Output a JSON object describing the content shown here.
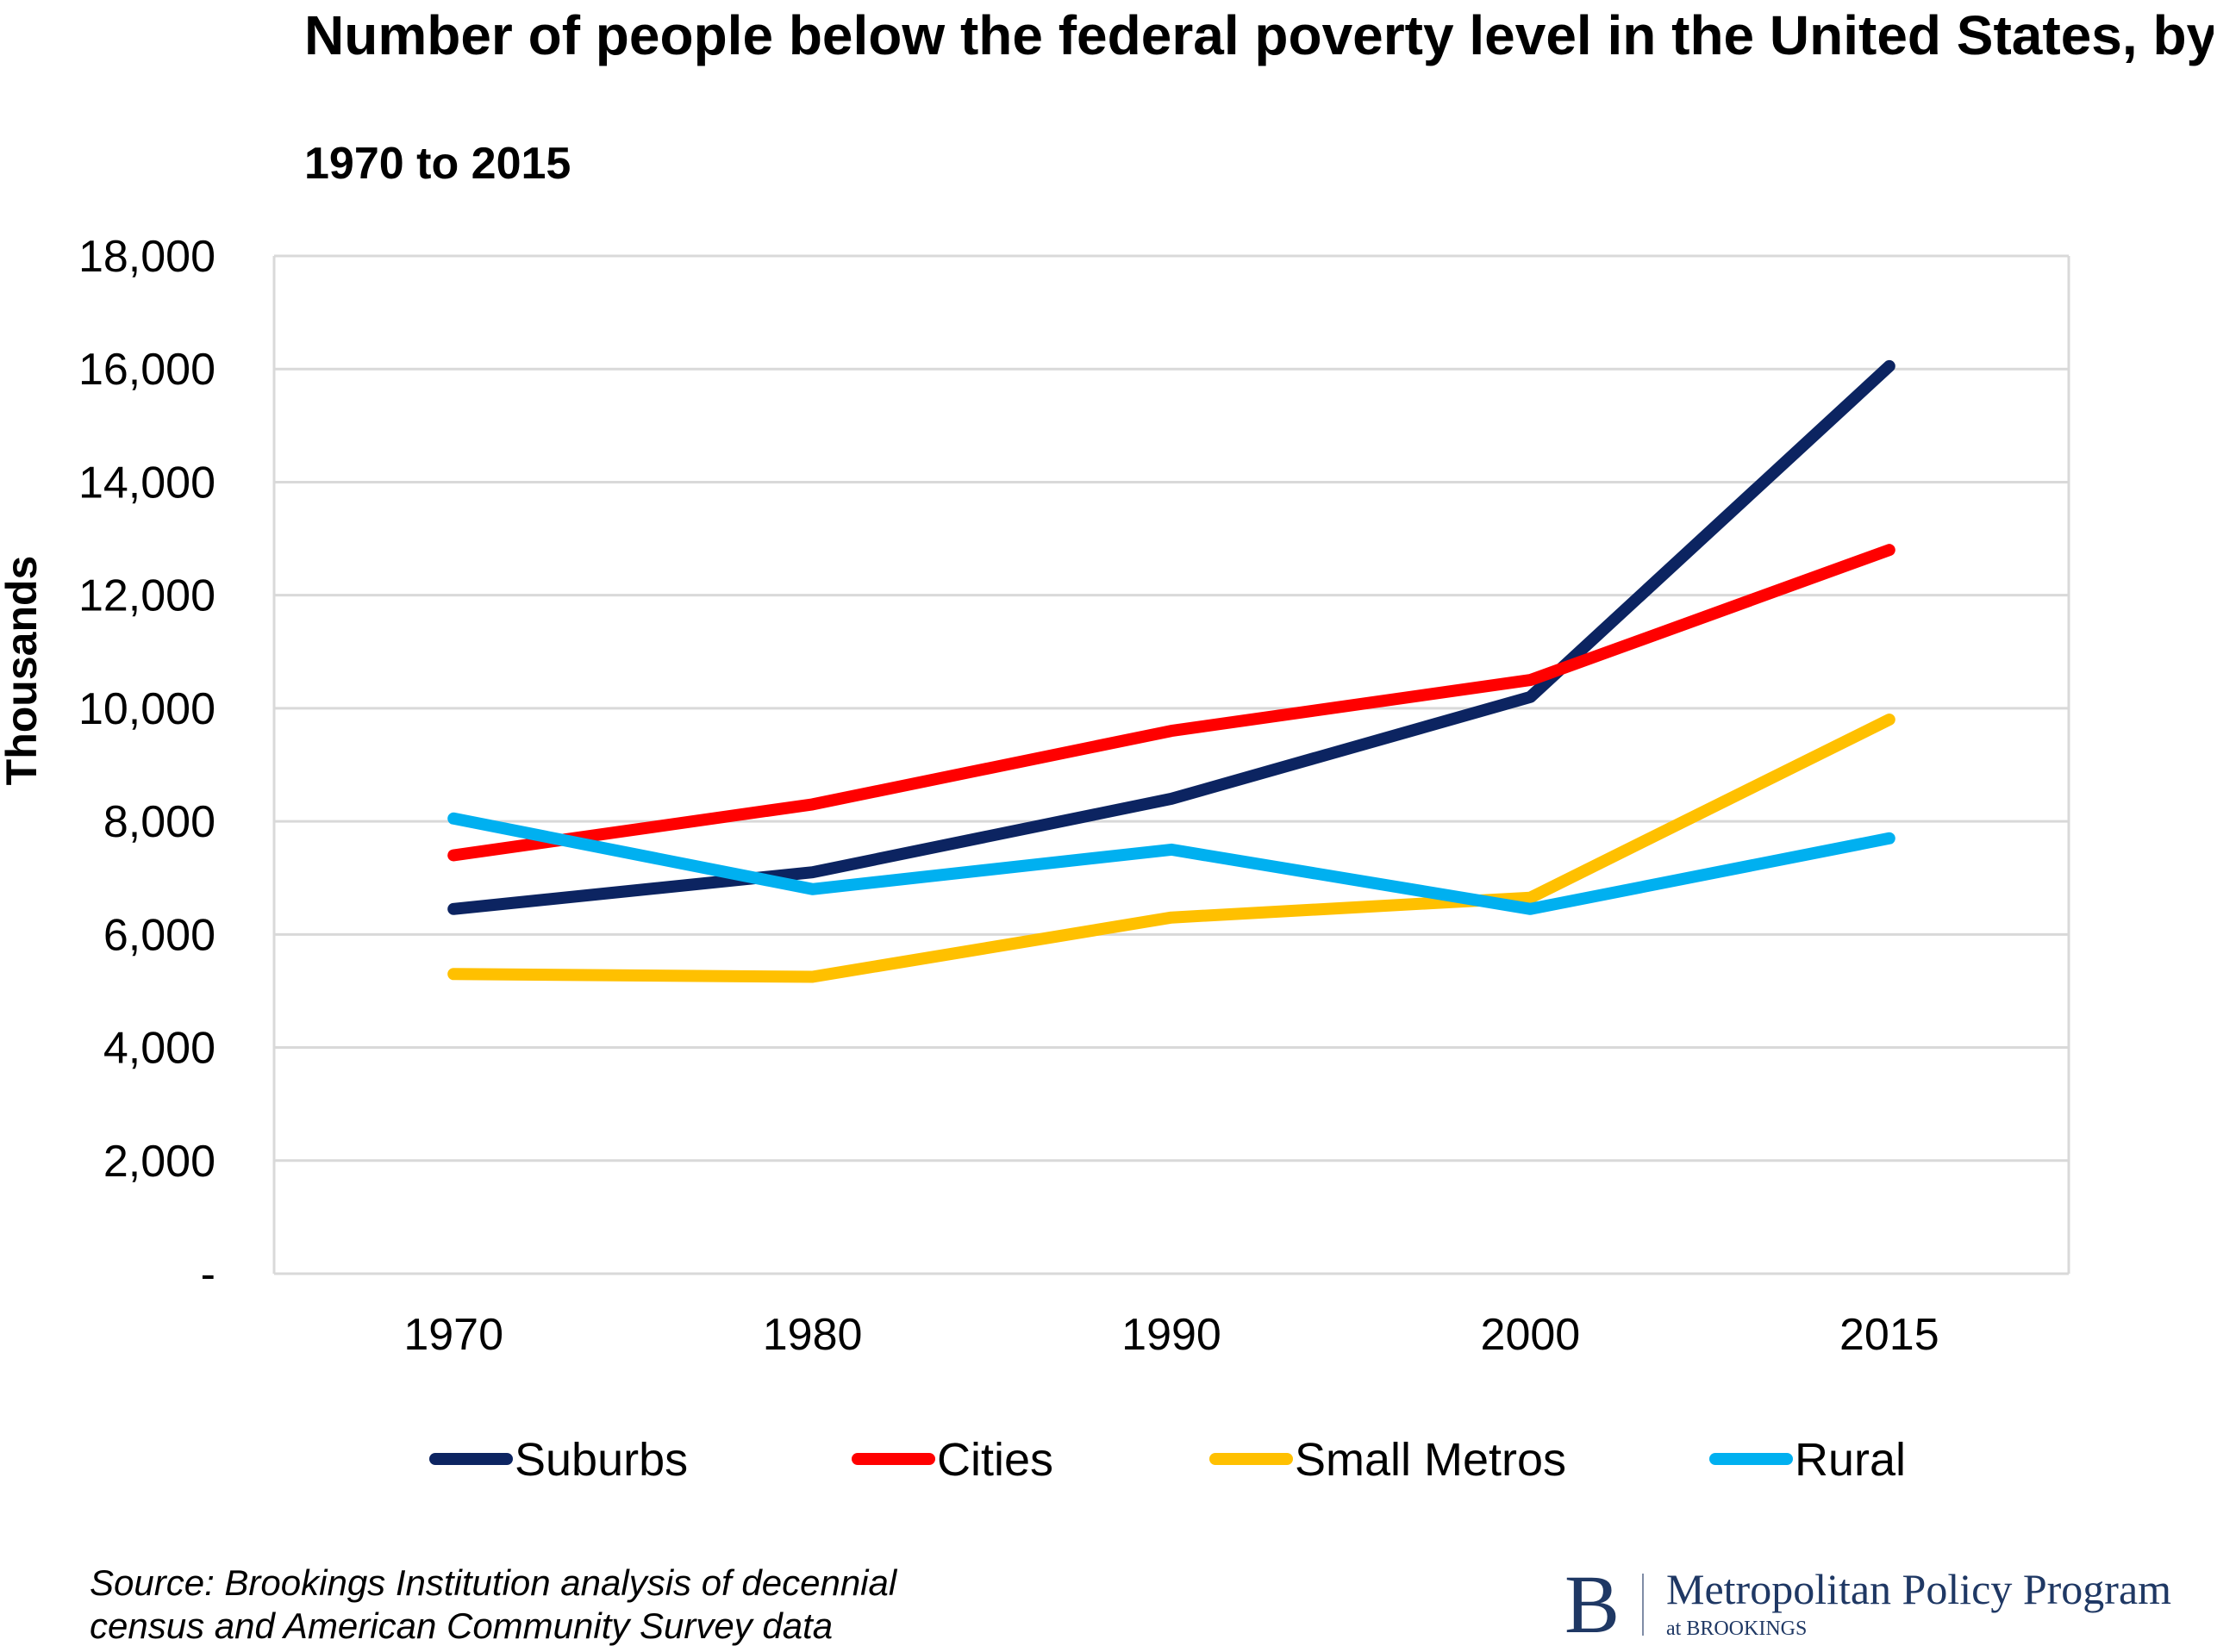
{
  "chart_data": {
    "type": "line",
    "title": "Number of people below the federal poverty level in the United States, by community type",
    "subtitle": "1970 to 2015",
    "xlabel": "",
    "ylabel": "Thousands",
    "categories": [
      "1970",
      "1980",
      "1990",
      "2000",
      "2015"
    ],
    "ylim": [
      0,
      18000
    ],
    "yticks": [
      {
        "value": 0,
        "label": "-"
      },
      {
        "value": 2000,
        "label": "2,000"
      },
      {
        "value": 4000,
        "label": "4,000"
      },
      {
        "value": 6000,
        "label": "6,000"
      },
      {
        "value": 8000,
        "label": "8,000"
      },
      {
        "value": 10000,
        "label": "10,000"
      },
      {
        "value": 12000,
        "label": "12,000"
      },
      {
        "value": 14000,
        "label": "14,000"
      },
      {
        "value": 16000,
        "label": "16,000"
      },
      {
        "value": 18000,
        "label": "18,000"
      }
    ],
    "grid": true,
    "legend_position": "bottom",
    "series": [
      {
        "name": "Suburbs",
        "color": "#0c2461",
        "values": [
          6450,
          7100,
          8400,
          10200,
          16050
        ]
      },
      {
        "name": "Cities",
        "color": "#ff0000",
        "values": [
          7400,
          8300,
          9600,
          10500,
          12800
        ]
      },
      {
        "name": "Small Metros",
        "color": "#ffc000",
        "values": [
          5300,
          5250,
          6300,
          6650,
          9800
        ]
      },
      {
        "name": "Rural",
        "color": "#00b0f0",
        "values": [
          8050,
          6800,
          7500,
          6450,
          7700
        ]
      }
    ]
  },
  "source": {
    "line1": "Source: Brookings Institution analysis of decennial",
    "line2": "census and American Community Survey data"
  },
  "logo": {
    "letter": "B",
    "main": "Metropolitan Policy Program",
    "sub": "at BROOKINGS"
  }
}
